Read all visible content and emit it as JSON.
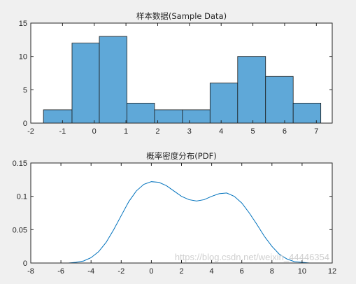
{
  "chart_data": [
    {
      "type": "bar",
      "title": "样本数据(Sample Data)",
      "bin_edges": [
        -1.6,
        -0.7,
        0.16,
        1.03,
        1.9,
        2.78,
        3.65,
        4.52,
        5.4,
        6.27,
        7.14
      ],
      "values": [
        2,
        12,
        13,
        3,
        2,
        2,
        6,
        10,
        7,
        3
      ],
      "xlim": [
        -2,
        7.5
      ],
      "ylim": [
        0,
        15
      ],
      "xticks": [
        -2,
        -1,
        0,
        1,
        2,
        3,
        4,
        5,
        6,
        7
      ],
      "yticks": [
        0,
        5,
        10,
        15
      ],
      "bar_color": "#5fa8d8",
      "edge_color": "#1a1a1a"
    },
    {
      "type": "line",
      "title": "概率密度分布(PDF)",
      "x": [
        -6.0,
        -5.5,
        -5.0,
        -4.5,
        -4.0,
        -3.5,
        -3.0,
        -2.5,
        -2.0,
        -1.5,
        -1.0,
        -0.5,
        0.0,
        0.5,
        1.0,
        1.5,
        2.0,
        2.5,
        3.0,
        3.5,
        4.0,
        4.5,
        5.0,
        5.5,
        6.0,
        6.5,
        7.0,
        7.5,
        8.0,
        8.5,
        9.0,
        9.5,
        10.0,
        10.5,
        11.0
      ],
      "y": [
        0.0,
        0.0,
        0.001,
        0.003,
        0.008,
        0.017,
        0.031,
        0.05,
        0.071,
        0.092,
        0.108,
        0.118,
        0.122,
        0.121,
        0.116,
        0.108,
        0.1,
        0.095,
        0.093,
        0.095,
        0.1,
        0.104,
        0.105,
        0.1,
        0.09,
        0.075,
        0.058,
        0.04,
        0.025,
        0.013,
        0.006,
        0.002,
        0.001,
        0.0,
        0.0
      ],
      "xlim": [
        -8,
        12
      ],
      "ylim": [
        0,
        0.15
      ],
      "xticks": [
        -8,
        -6,
        -4,
        -2,
        0,
        2,
        4,
        6,
        8,
        10,
        12
      ],
      "yticks": [
        0,
        0.05,
        0.1,
        0.15
      ],
      "ytick_labels": [
        "0",
        "0.05",
        "0.1",
        "0.15"
      ],
      "line_color": "#0072bd"
    }
  ],
  "watermark": "https://blog.csdn.net/weixin_44446354"
}
